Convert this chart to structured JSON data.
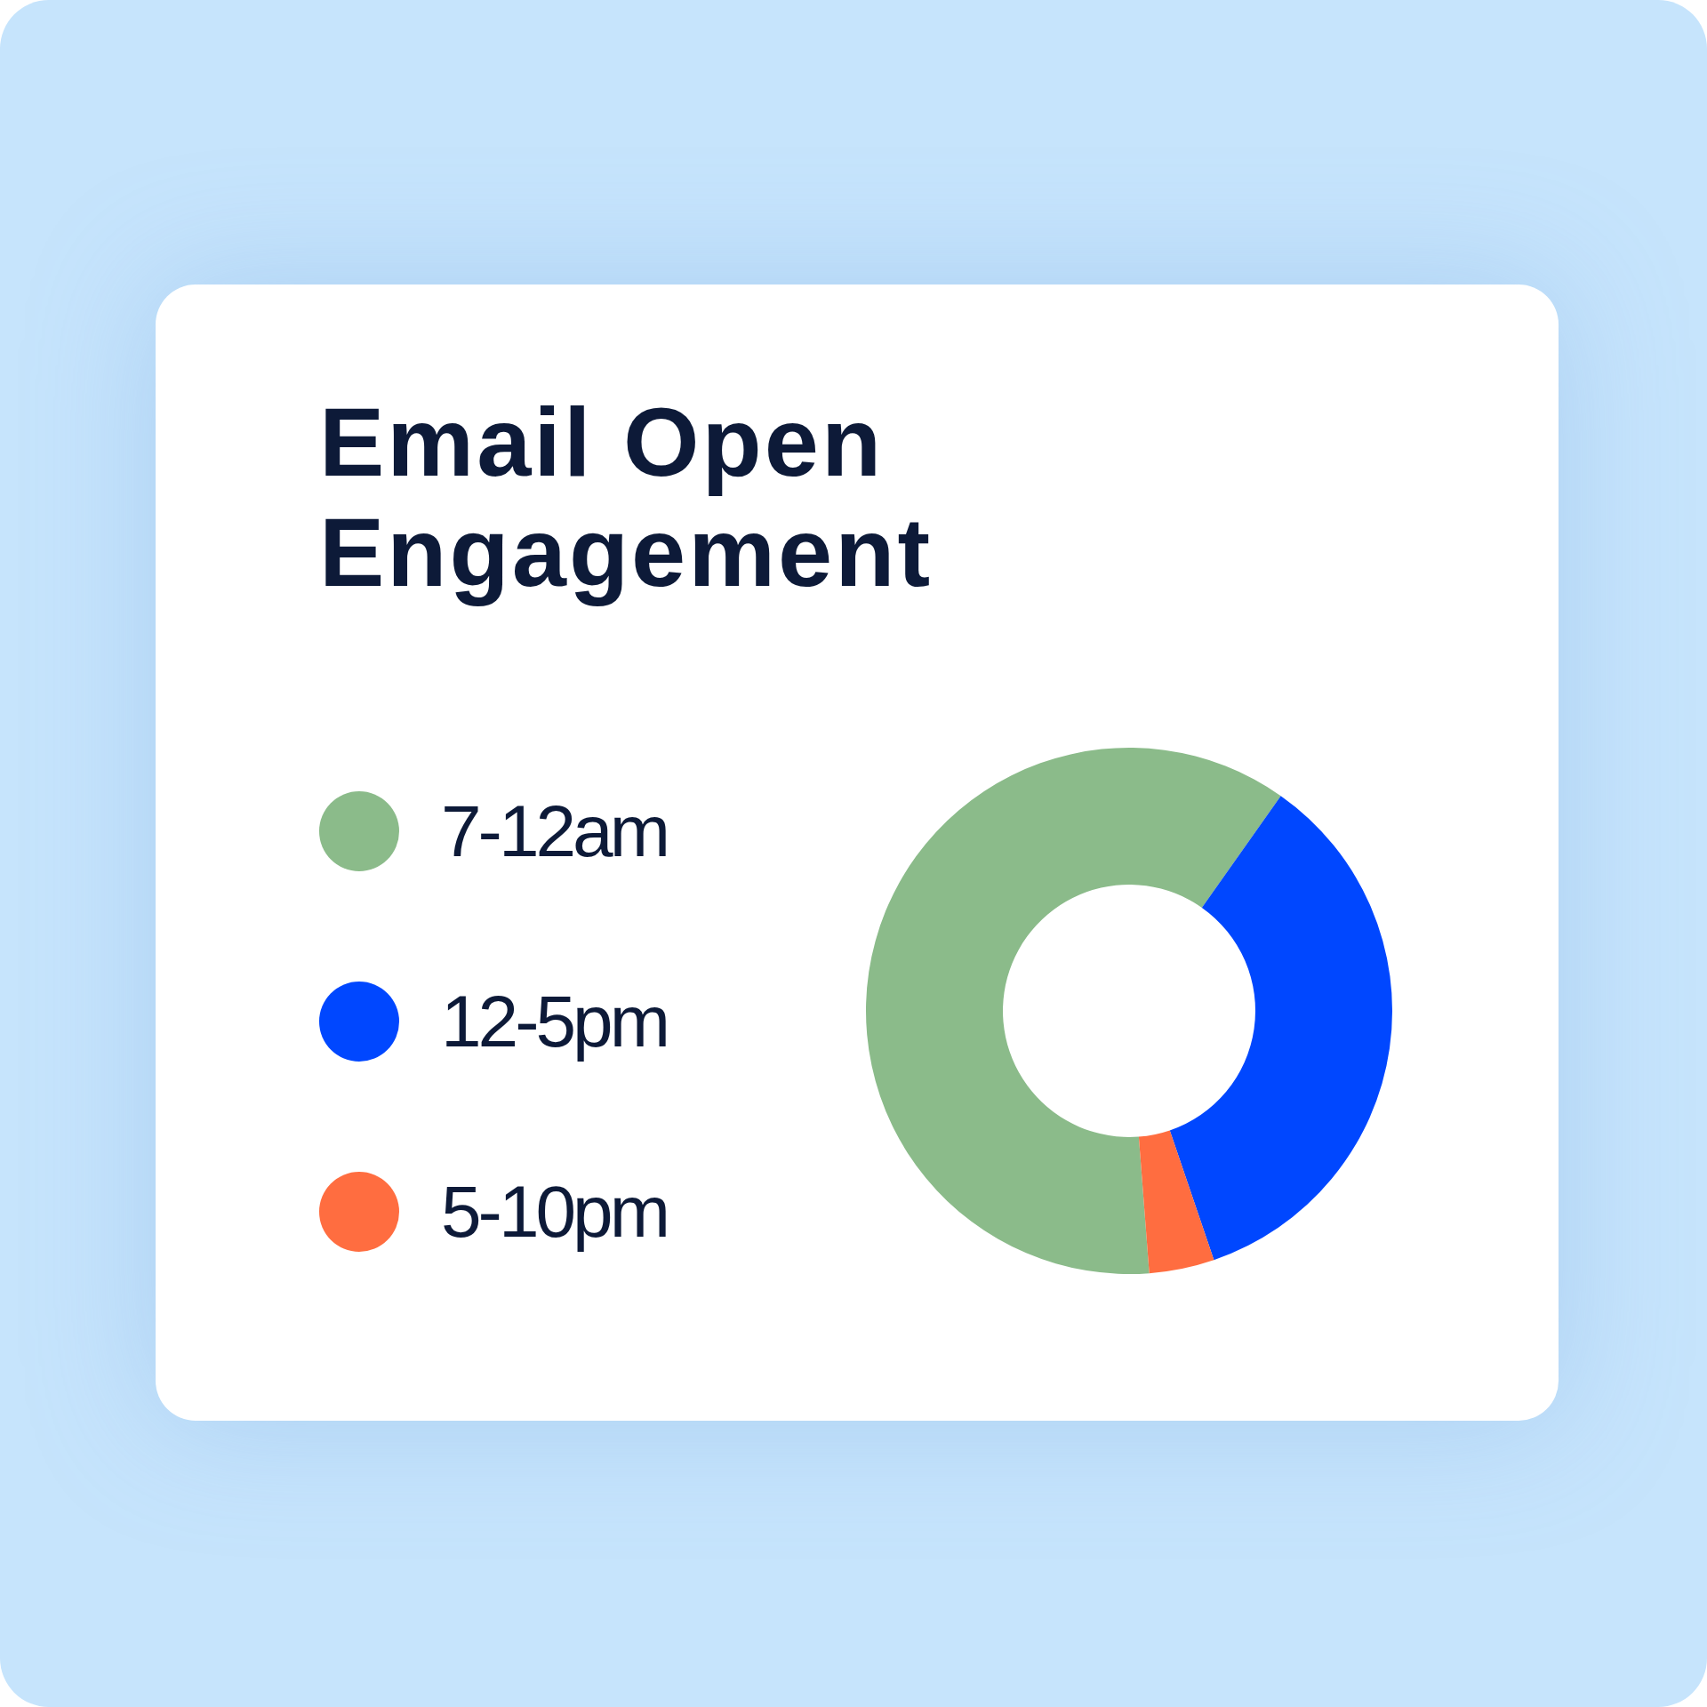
{
  "chart_data": {
    "type": "donut",
    "title": "Email Open Engagement",
    "categories": [
      "7-12am",
      "12-5pm",
      "5-10pm"
    ],
    "values": [
      61,
      35,
      4
    ],
    "colors": [
      "#8bbb8a",
      "#0047ff",
      "#ff6d40"
    ],
    "legend": "left"
  }
}
